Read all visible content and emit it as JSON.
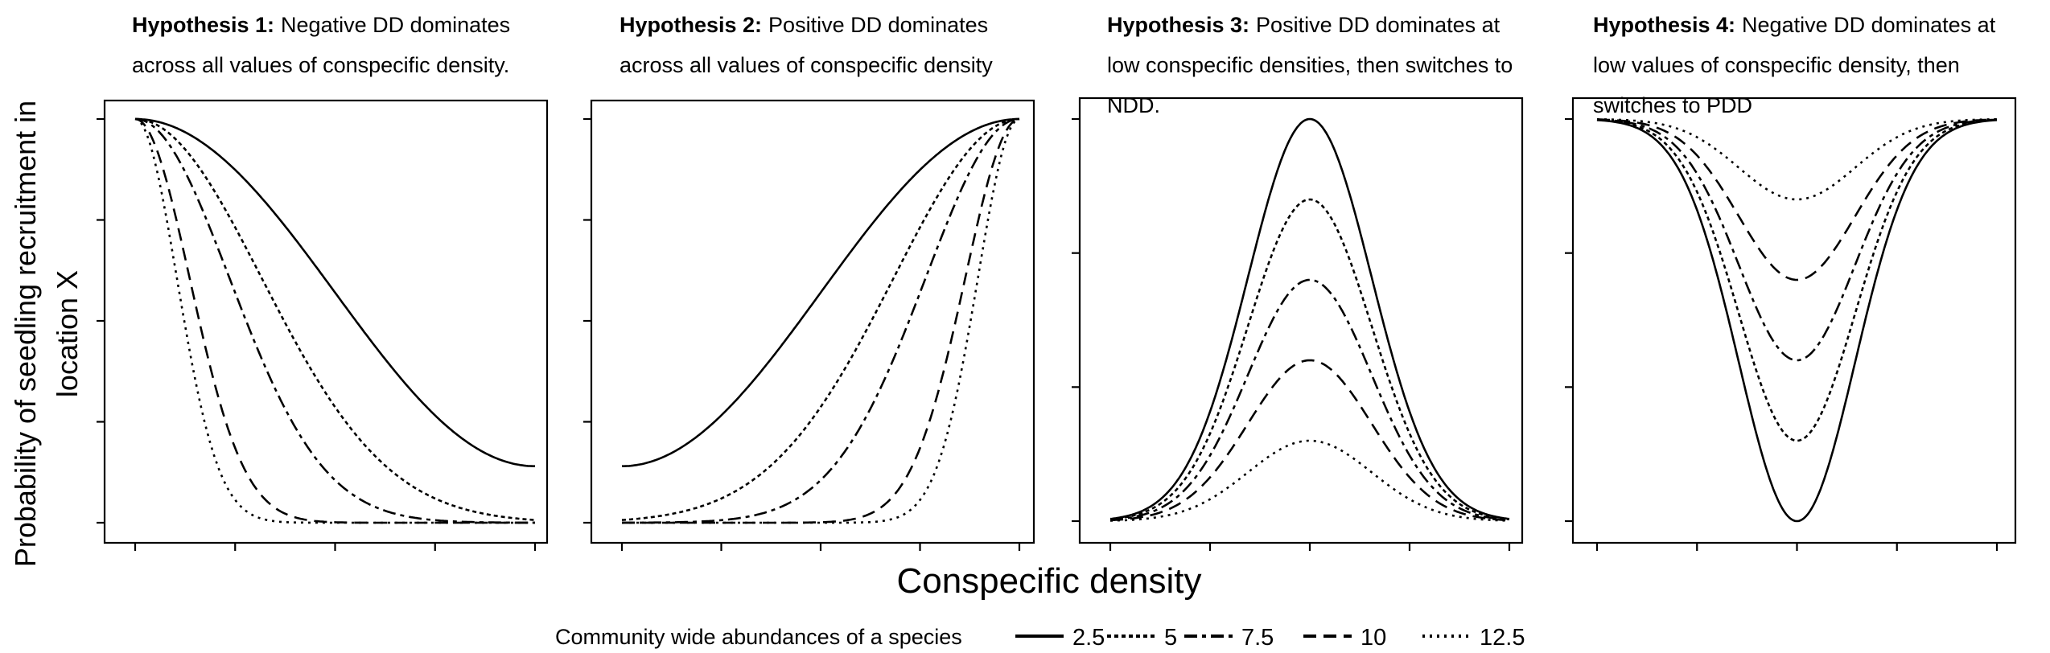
{
  "y_axis_label_lines": [
    "Probability of seedling recruitment in",
    "location X"
  ],
  "x_axis_label": "Conspecific density",
  "legend": {
    "title": "Community wide abundances of a species",
    "entries": [
      {
        "label": "2.5",
        "dash": "solid"
      },
      {
        "label": "5",
        "dash": "dotted-dense"
      },
      {
        "label": "7.5",
        "dash": "long-short"
      },
      {
        "label": "10",
        "dash": "long"
      },
      {
        "label": "12.5",
        "dash": "dotted"
      }
    ]
  },
  "chart_data": [
    {
      "type": "line",
      "title_bold": "Hypothesis 1:",
      "title_lines": [
        "Negative DD dominates",
        "across all values of conspecific density."
      ],
      "x": [
        0,
        1
      ],
      "x_ticks": 5,
      "y_ticks": 5,
      "shape": "decreasing",
      "series": [
        {
          "abundance": "2.5",
          "end_value": 0.14
        },
        {
          "abundance": "5",
          "end_value": 0.0
        },
        {
          "abundance": "7.5",
          "end_value": 0.0
        },
        {
          "abundance": "10",
          "end_value": 0.0
        },
        {
          "abundance": "12.5",
          "end_value": 0.0
        }
      ]
    },
    {
      "type": "line",
      "title_bold": "Hypothesis 2:",
      "title_lines": [
        "Positive DD dominates",
        "across all values of conspecific density"
      ],
      "x": [
        0,
        1
      ],
      "x_ticks": 5,
      "y_ticks": 5,
      "shape": "increasing",
      "series": [
        {
          "abundance": "2.5",
          "start_value": 0.14
        },
        {
          "abundance": "5",
          "start_value": 0.01
        },
        {
          "abundance": "7.5",
          "start_value": 0.0
        },
        {
          "abundance": "10",
          "start_value": 0.0
        },
        {
          "abundance": "12.5",
          "start_value": 0.0
        }
      ]
    },
    {
      "type": "line",
      "title_bold": "Hypothesis 3:",
      "title_lines": [
        "Positive DD dominates at",
        "low conspecific densities, then switches to",
        "NDD."
      ],
      "x": [
        0,
        1
      ],
      "x_ticks": 5,
      "y_ticks": 4,
      "shape": "hump",
      "series": [
        {
          "abundance": "2.5",
          "peak": 1.0
        },
        {
          "abundance": "5",
          "peak": 0.8
        },
        {
          "abundance": "7.5",
          "peak": 0.6
        },
        {
          "abundance": "10",
          "peak": 0.4
        },
        {
          "abundance": "12.5",
          "peak": 0.2
        }
      ]
    },
    {
      "type": "line",
      "title_bold": "Hypothesis 4:",
      "title_lines": [
        "Negative DD dominates at",
        "low values of conspecific density, then",
        "switches to PDD"
      ],
      "x": [
        0,
        1
      ],
      "x_ticks": 5,
      "y_ticks": 4,
      "shape": "trough",
      "series": [
        {
          "abundance": "2.5",
          "minimum": 0.0
        },
        {
          "abundance": "5",
          "minimum": 0.2
        },
        {
          "abundance": "7.5",
          "minimum": 0.4
        },
        {
          "abundance": "10",
          "minimum": 0.6
        },
        {
          "abundance": "12.5",
          "minimum": 0.8
        }
      ]
    }
  ]
}
